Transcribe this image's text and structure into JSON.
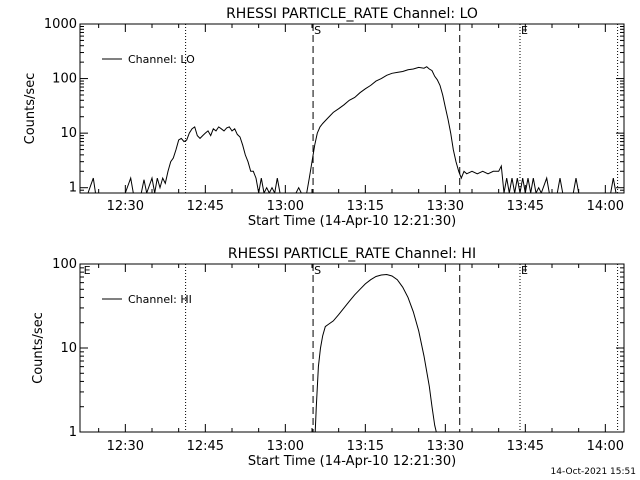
{
  "footer": {
    "timestamp": "14-Oct-2021 15:51"
  },
  "chart_data": [
    {
      "type": "line",
      "title": "RHESSI PARTICLE_RATE Channel: LO",
      "xlabel": "Start Time (14-Apr-10 12:21:30)",
      "ylabel": "Counts/sec",
      "y_scale": "log",
      "xlim_minutes": [
        21.5,
        123.5
      ],
      "ylim": [
        0.8,
        1000
      ],
      "x_ticks": [
        {
          "minute": 30,
          "label": "12:30"
        },
        {
          "minute": 45,
          "label": "12:45"
        },
        {
          "minute": 60,
          "label": "13:00"
        },
        {
          "minute": 75,
          "label": "13:15"
        },
        {
          "minute": 90,
          "label": "13:30"
        },
        {
          "minute": 105,
          "label": "13:45"
        },
        {
          "minute": 120,
          "label": "14:00"
        }
      ],
      "y_ticks": [
        {
          "value": 1,
          "label": "1"
        },
        {
          "value": 10,
          "label": "10"
        },
        {
          "value": 100,
          "label": "100"
        },
        {
          "value": 1000,
          "label": "1000"
        }
      ],
      "legend": {
        "label": "Channel: LO",
        "position": "top-left"
      },
      "markers": [
        {
          "minute": 41.3,
          "style": "dotted",
          "label": ""
        },
        {
          "minute": 65.2,
          "style": "dashed",
          "label": "S"
        },
        {
          "minute": 92.7,
          "style": "dashed",
          "label": ""
        },
        {
          "minute": 104.0,
          "style": "dotted",
          "label": "E"
        },
        {
          "minute": 122.3,
          "style": "dotted",
          "label": ""
        }
      ],
      "series": [
        {
          "name": "Channel: LO",
          "points": [
            [
              22.5,
              0.8
            ],
            [
              23,
              0.8
            ],
            [
              24,
              1.5
            ],
            [
              24.4,
              0.8
            ],
            [
              30,
              0.8
            ],
            [
              31,
              1.5
            ],
            [
              31.5,
              0.8
            ],
            [
              33,
              0.8
            ],
            [
              33.5,
              1.4
            ],
            [
              34,
              0.8
            ],
            [
              35,
              1.5
            ],
            [
              35.5,
              0.8
            ],
            [
              36,
              1.5
            ],
            [
              36.5,
              1.0
            ],
            [
              37,
              1.5
            ],
            [
              37.5,
              1.2
            ],
            [
              38,
              2.0
            ],
            [
              38.5,
              3.0
            ],
            [
              39,
              3.5
            ],
            [
              39.5,
              5.0
            ],
            [
              40,
              7.5
            ],
            [
              40.5,
              8.0
            ],
            [
              41,
              7.0
            ],
            [
              41.5,
              7.5
            ],
            [
              42,
              10.0
            ],
            [
              42.5,
              12.0
            ],
            [
              43,
              13.0
            ],
            [
              43.5,
              9.0
            ],
            [
              44,
              8.0
            ],
            [
              44.5,
              9.0
            ],
            [
              45,
              10.0
            ],
            [
              45.5,
              11.0
            ],
            [
              46,
              9.0
            ],
            [
              46.5,
              12.0
            ],
            [
              47,
              11.0
            ],
            [
              47.5,
              13.0
            ],
            [
              48,
              12.0
            ],
            [
              48.5,
              11.0
            ],
            [
              49,
              12.5
            ],
            [
              49.5,
              13.0
            ],
            [
              50,
              11.0
            ],
            [
              50.5,
              12.0
            ],
            [
              51,
              9.5
            ],
            [
              51.5,
              8.5
            ],
            [
              52,
              6.0
            ],
            [
              52.5,
              4.0
            ],
            [
              53,
              3.0
            ],
            [
              53.5,
              2.0
            ],
            [
              54,
              2.0
            ],
            [
              54.5,
              1.5
            ],
            [
              55,
              0.8
            ],
            [
              55.5,
              1.5
            ],
            [
              56,
              0.8
            ],
            [
              56.5,
              1.0
            ],
            [
              57,
              0.8
            ],
            [
              57.5,
              1.0
            ],
            [
              58,
              0.8
            ],
            [
              58.5,
              1.5
            ],
            [
              59,
              0.8
            ],
            [
              62,
              0.8
            ],
            [
              62.5,
              1.0
            ],
            [
              63,
              0.8
            ],
            [
              64,
              0.8
            ],
            [
              64.5,
              1.5
            ],
            [
              65,
              3.0
            ],
            [
              65.5,
              6.0
            ],
            [
              66,
              10.0
            ],
            [
              66.5,
              13.0
            ],
            [
              67,
              15.0
            ],
            [
              68,
              19.0
            ],
            [
              69,
              24.0
            ],
            [
              70,
              28.0
            ],
            [
              71,
              33.0
            ],
            [
              72,
              40.0
            ],
            [
              73,
              45.0
            ],
            [
              74,
              55.0
            ],
            [
              75,
              65.0
            ],
            [
              76,
              75.0
            ],
            [
              77,
              90.0
            ],
            [
              78,
              100.0
            ],
            [
              79,
              115.0
            ],
            [
              80,
              125.0
            ],
            [
              81,
              130.0
            ],
            [
              82,
              135.0
            ],
            [
              83,
              145.0
            ],
            [
              84,
              150.0
            ],
            [
              85,
              160.0
            ],
            [
              86,
              155.0
            ],
            [
              86.5,
              165.0
            ],
            [
              87,
              150.0
            ],
            [
              87.5,
              140.0
            ],
            [
              88,
              110.0
            ],
            [
              88.5,
              95.0
            ],
            [
              89,
              75.0
            ],
            [
              89.5,
              50.0
            ],
            [
              90,
              30.0
            ],
            [
              90.5,
              18.0
            ],
            [
              91,
              10.0
            ],
            [
              91.5,
              5.0
            ],
            [
              92,
              3.0
            ],
            [
              92.5,
              2.0
            ],
            [
              93,
              1.5
            ],
            [
              93.5,
              2.0
            ],
            [
              94,
              1.8
            ],
            [
              95,
              2.0
            ],
            [
              96,
              1.8
            ],
            [
              97,
              2.0
            ],
            [
              98,
              1.8
            ],
            [
              99,
              2.0
            ],
            [
              100,
              2.0
            ],
            [
              100.5,
              2.5
            ],
            [
              101,
              0.8
            ],
            [
              101.5,
              1.5
            ],
            [
              102,
              0.8
            ],
            [
              102.5,
              1.5
            ],
            [
              103,
              0.8
            ],
            [
              103.5,
              1.5
            ],
            [
              104,
              0.8
            ],
            [
              104.5,
              1.5
            ],
            [
              105,
              0.8
            ],
            [
              105.5,
              1.5
            ],
            [
              106,
              0.8
            ],
            [
              106.5,
              1.5
            ],
            [
              107,
              0.8
            ],
            [
              107.5,
              1.0
            ],
            [
              108,
              0.8
            ],
            [
              109,
              1.5
            ],
            [
              109.5,
              0.8
            ],
            [
              111,
              0.8
            ],
            [
              111.5,
              1.5
            ],
            [
              112,
              0.8
            ],
            [
              114,
              0.8
            ],
            [
              114.5,
              1.5
            ],
            [
              115,
              0.8
            ],
            [
              121,
              0.8
            ],
            [
              121.5,
              1.5
            ],
            [
              122,
              0.8
            ]
          ]
        }
      ]
    },
    {
      "type": "line",
      "title": "RHESSI PARTICLE_RATE Channel: HI",
      "xlabel": "Start Time (14-Apr-10 12:21:30)",
      "ylabel": "Counts/sec",
      "y_scale": "log",
      "xlim_minutes": [
        21.5,
        123.5
      ],
      "ylim": [
        1,
        100
      ],
      "x_ticks": [
        {
          "minute": 30,
          "label": "12:30"
        },
        {
          "minute": 45,
          "label": "12:45"
        },
        {
          "minute": 60,
          "label": "13:00"
        },
        {
          "minute": 75,
          "label": "13:15"
        },
        {
          "minute": 90,
          "label": "13:30"
        },
        {
          "minute": 105,
          "label": "13:45"
        },
        {
          "minute": 120,
          "label": "14:00"
        }
      ],
      "y_ticks": [
        {
          "value": 1,
          "label": "1"
        },
        {
          "value": 10,
          "label": "10"
        },
        {
          "value": 100,
          "label": "100"
        }
      ],
      "legend": {
        "label": "Channel: HI",
        "position": "top-left"
      },
      "markers": [
        {
          "minute": 22.0,
          "style": "none",
          "label": "E"
        },
        {
          "minute": 41.3,
          "style": "dotted",
          "label": ""
        },
        {
          "minute": 65.2,
          "style": "dashed",
          "label": "S"
        },
        {
          "minute": 92.7,
          "style": "dashed",
          "label": ""
        },
        {
          "minute": 104.0,
          "style": "dotted",
          "label": "E"
        },
        {
          "minute": 122.3,
          "style": "dotted",
          "label": ""
        }
      ],
      "series": [
        {
          "name": "Channel: HI",
          "points": [
            [
              65.6,
              0.9
            ],
            [
              65.8,
              2.0
            ],
            [
              66.2,
              6.0
            ],
            [
              66.6,
              10.0
            ],
            [
              67,
              14.0
            ],
            [
              67.5,
              18.0
            ],
            [
              68,
              19.0
            ],
            [
              69,
              21.0
            ],
            [
              70,
              25.0
            ],
            [
              71,
              30.0
            ],
            [
              72,
              36.0
            ],
            [
              73,
              43.0
            ],
            [
              74,
              50.0
            ],
            [
              75,
              58.0
            ],
            [
              76,
              65.0
            ],
            [
              77,
              71.0
            ],
            [
              78,
              74.0
            ],
            [
              79,
              75.0
            ],
            [
              80,
              72.0
            ],
            [
              81,
              65.0
            ],
            [
              82,
              53.0
            ],
            [
              83,
              40.0
            ],
            [
              84,
              27.0
            ],
            [
              85,
              16.0
            ],
            [
              86,
              8.0
            ],
            [
              87,
              3.5
            ],
            [
              87.5,
              2.0
            ],
            [
              88,
              1.2
            ],
            [
              88.3,
              0.9
            ]
          ]
        }
      ]
    }
  ]
}
